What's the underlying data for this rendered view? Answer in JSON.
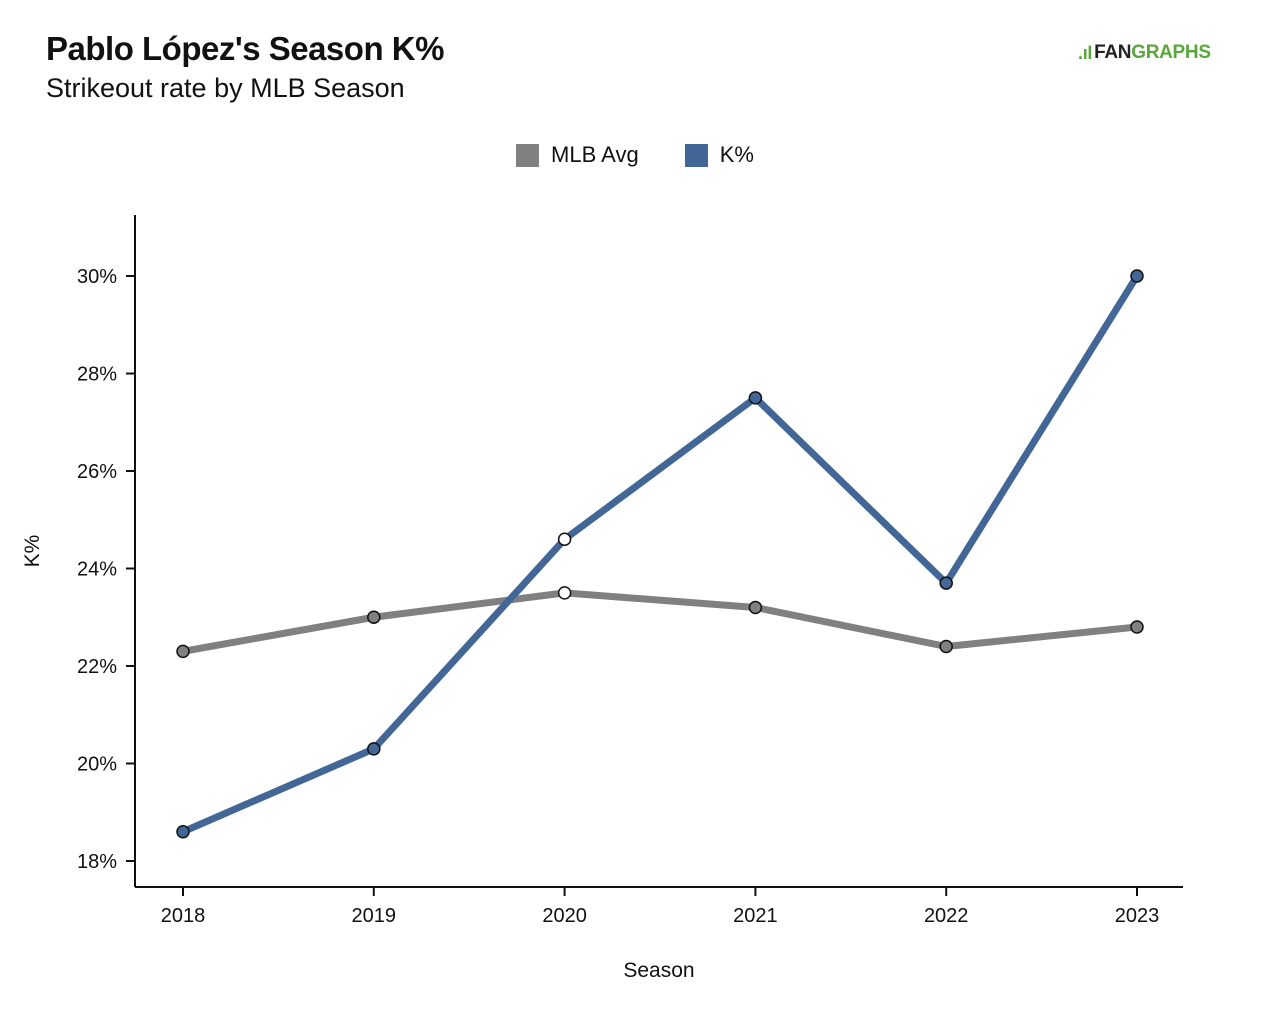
{
  "header": {
    "title": "Pablo López's Season K%",
    "subtitle": "Strikeout rate by MLB Season"
  },
  "logo": {
    "mark": ".ıl",
    "fan": "FAN",
    "graphs": "GRAPHS"
  },
  "colors": {
    "mlb_avg": "#808080",
    "k_pct": "#426797",
    "logo_green": "#59a73a"
  },
  "chart_data": {
    "type": "line",
    "title": "Pablo López's Season K%",
    "subtitle": "Strikeout rate by MLB Season",
    "xlabel": "Season",
    "ylabel": "K%",
    "x": [
      "2018",
      "2019",
      "2020",
      "2021",
      "2022",
      "2023"
    ],
    "yticks": [
      "18%",
      "20%",
      "22%",
      "24%",
      "26%",
      "28%",
      "30%"
    ],
    "ylim": [
      17.5,
      31.2
    ],
    "legend_position": "top-center",
    "grid": false,
    "series": [
      {
        "name": "MLB Avg",
        "color": "#808080",
        "values": [
          22.3,
          23.0,
          23.5,
          23.2,
          22.4,
          22.8
        ]
      },
      {
        "name": "K%",
        "color": "#426797",
        "values": [
          18.6,
          20.3,
          24.6,
          27.5,
          23.7,
          30.0
        ]
      }
    ],
    "hollow_markers": [
      {
        "series": 0,
        "index": 2
      },
      {
        "series": 1,
        "index": 2
      }
    ]
  }
}
